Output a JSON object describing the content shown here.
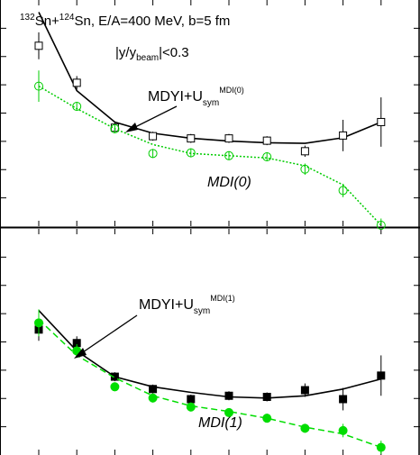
{
  "chart_data": [
    {
      "type": "scatter",
      "title_parts": {
        "a1": "132",
        "s1": "Sn+",
        "a2": "124",
        "s2": "Sn, E/A=400 MeV, b=5 fm"
      },
      "cut_parts": {
        "pre": "|y/y",
        "sub": "beam",
        "post": "|<0.3"
      },
      "label_mdyi_parts": {
        "main": "MDYI+U",
        "sub": "sym",
        "sup": "MDI(0)"
      },
      "label_mdi": "MDI(0)",
      "x": [
        0,
        1,
        2,
        3,
        4,
        5,
        6,
        7,
        8,
        9
      ],
      "ylim": [
        0,
        10
      ],
      "series": [
        {
          "name": "MDYI+Usym MDI(0)",
          "color": "#000000",
          "marker": "open-square",
          "line": "solid",
          "values": [
            8.0,
            6.35,
            4.35,
            3.97,
            3.87,
            3.87,
            3.77,
            3.3,
            4.0,
            4.6
          ],
          "errors": [
            0.6,
            0.3,
            0.25,
            0.2,
            0.2,
            0.2,
            0.2,
            0.25,
            0.7,
            1.1
          ],
          "curve": [
            9.5,
            6.0,
            4.6,
            4.1,
            3.88,
            3.75,
            3.68,
            3.65,
            3.9,
            4.6
          ]
        },
        {
          "name": "MDI(0)",
          "color": "#00cc00",
          "marker": "open-circle",
          "line": "dotted",
          "values": [
            6.2,
            5.3,
            4.3,
            3.2,
            3.23,
            3.1,
            3.05,
            2.5,
            1.55,
            0
          ],
          "errors": [
            0.7,
            0.2,
            0.2,
            0.2,
            0.2,
            0.2,
            0.2,
            0.25,
            0.3,
            0.3
          ],
          "curve": [
            6.2,
            5.2,
            4.3,
            3.6,
            3.2,
            3.1,
            3.0,
            2.65,
            1.8,
            0
          ]
        }
      ]
    },
    {
      "type": "scatter",
      "label_mdyi_parts": {
        "main": "MDYI+U",
        "sub": "sym",
        "sup": "MDI(1)"
      },
      "label_mdi": "MDI(1)",
      "x": [
        0,
        1,
        2,
        3,
        4,
        5,
        6,
        7,
        8,
        9
      ],
      "ylim": [
        0,
        10
      ],
      "series": [
        {
          "name": "MDYI+Usym MDI(1)",
          "color": "#000000",
          "marker": "filled-square",
          "line": "solid",
          "values": [
            5.55,
            4.95,
            3.45,
            2.9,
            2.45,
            2.6,
            2.55,
            2.85,
            2.45,
            3.5
          ],
          "errors": [
            0.5,
            0.3,
            0.2,
            0.2,
            0.2,
            0.2,
            0.2,
            0.3,
            0.5,
            0.9
          ],
          "curve": [
            6.4,
            4.6,
            3.45,
            3.0,
            2.75,
            2.55,
            2.5,
            2.6,
            2.9,
            3.35
          ]
        },
        {
          "name": "MDI(1)",
          "color": "#00dd00",
          "marker": "filled-circle",
          "line": "dashed",
          "values": [
            5.85,
            4.6,
            3.0,
            2.5,
            2.1,
            1.85,
            1.6,
            1.15,
            1.05,
            0.3
          ],
          "errors": [
            0.6,
            0.3,
            0.2,
            0.2,
            0.2,
            0.2,
            0.2,
            0.2,
            0.3,
            0.3
          ],
          "curve": [
            6.0,
            4.4,
            3.4,
            2.6,
            2.15,
            1.9,
            1.6,
            1.2,
            0.9,
            0.3
          ]
        }
      ]
    }
  ]
}
